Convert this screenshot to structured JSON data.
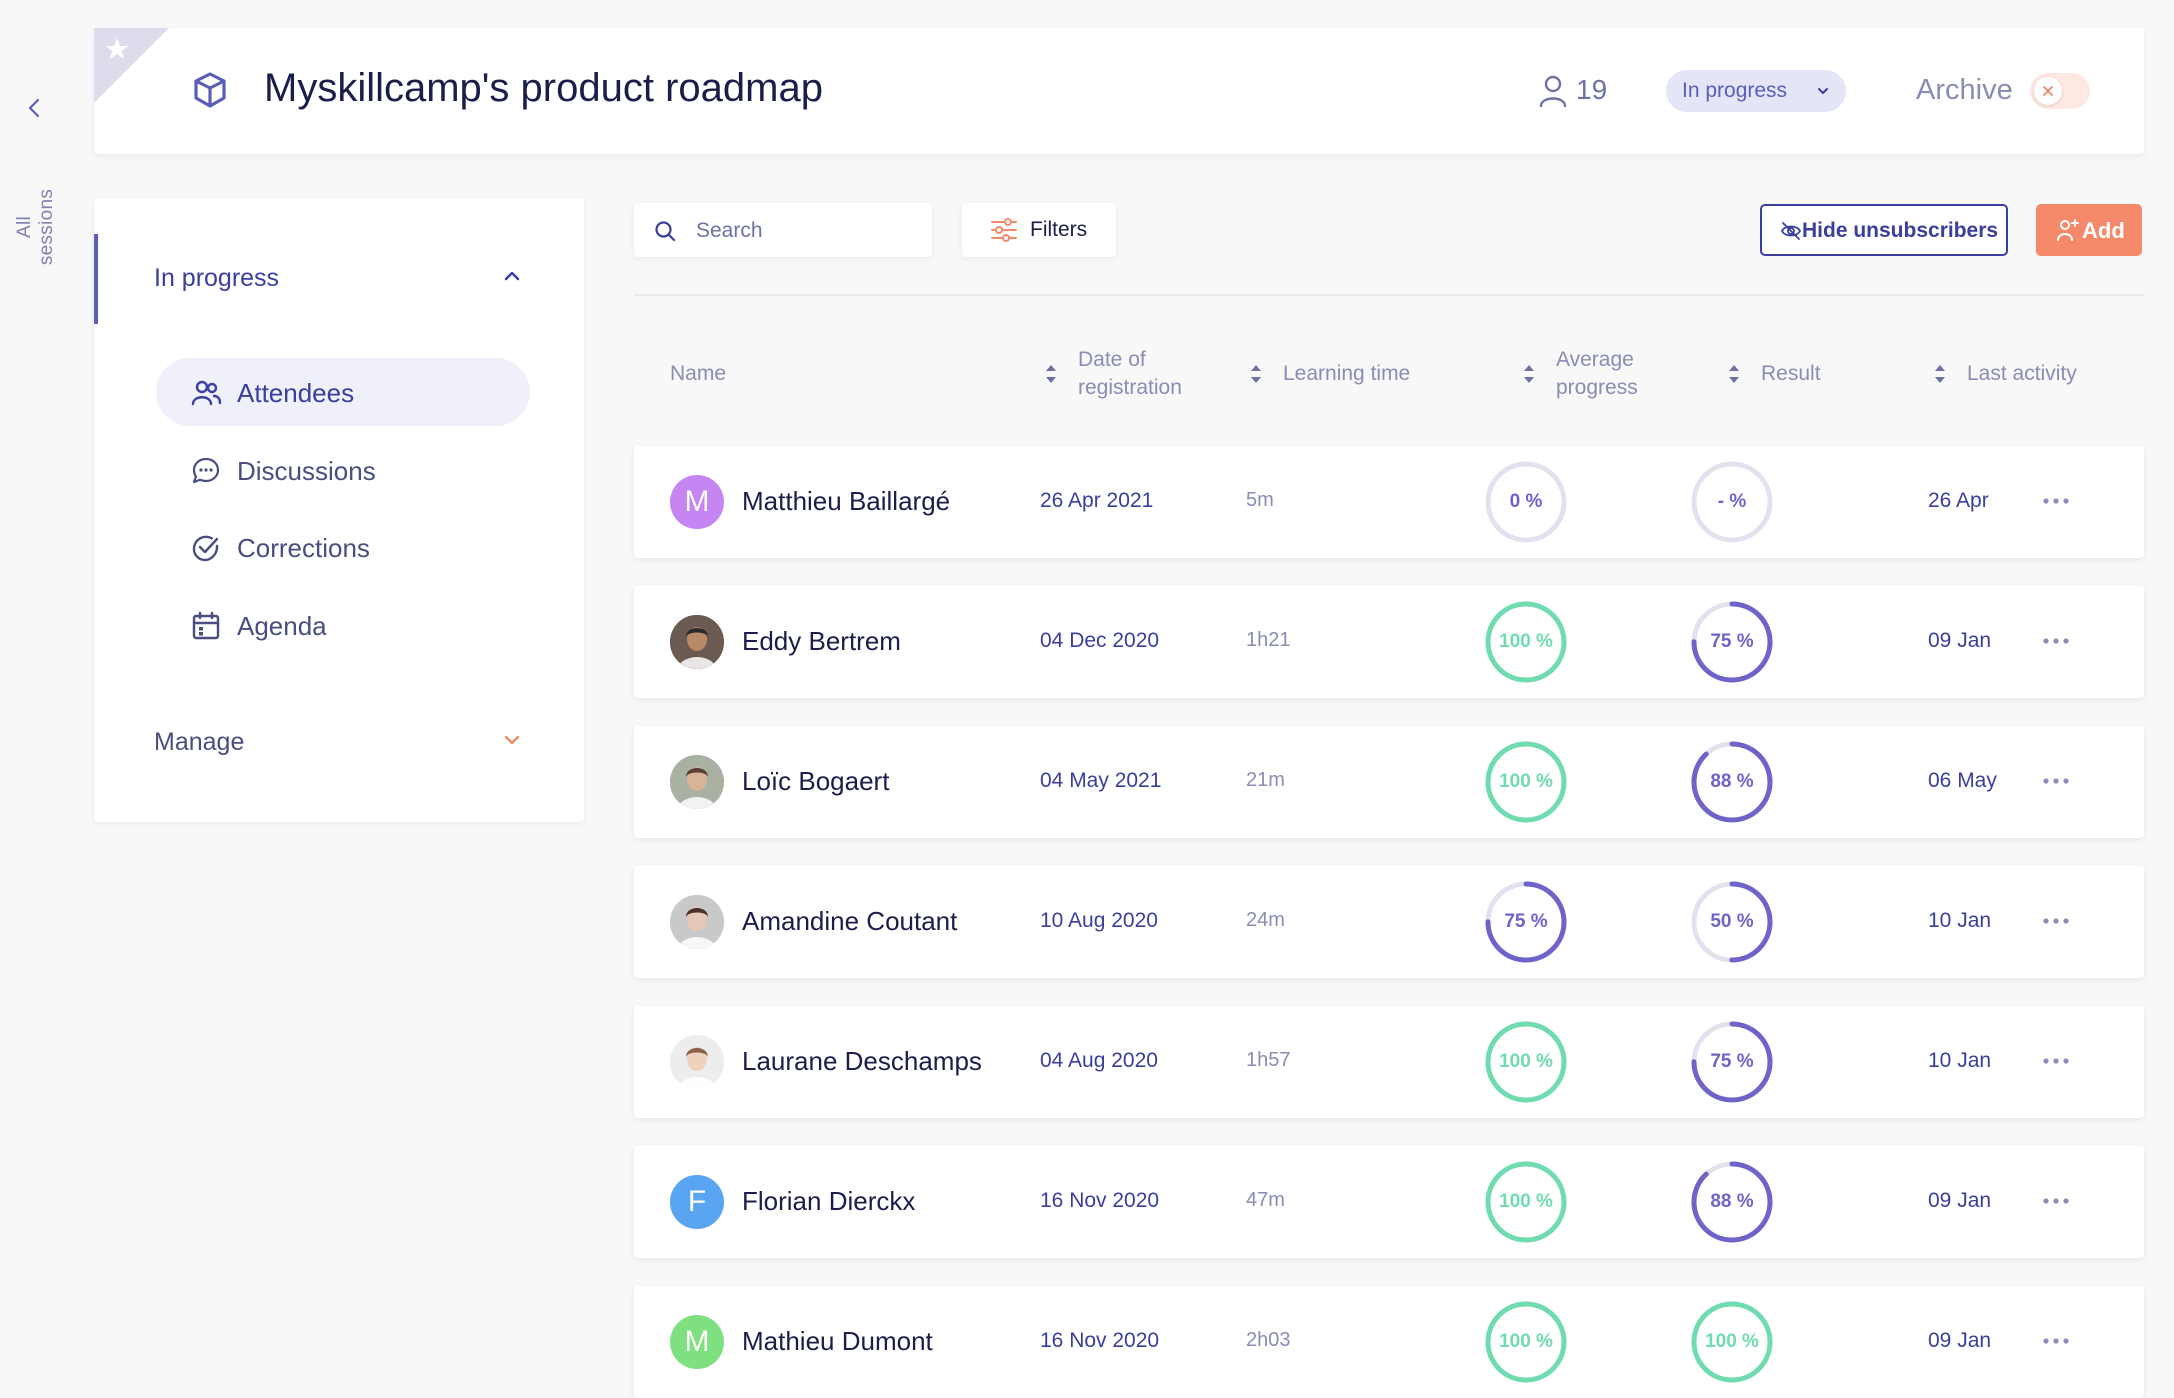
{
  "rail": {
    "back_label": "All sessions"
  },
  "header": {
    "title": "Myskillcamp's product roadmap",
    "attendee_count": "19",
    "status": "In progress",
    "archive_label": "Archive",
    "archive_enabled": false
  },
  "sidebar": {
    "section_label": "In progress",
    "items": [
      {
        "label": "Attendees",
        "icon": "attendees-icon",
        "active": true
      },
      {
        "label": "Discussions",
        "icon": "chat-bubble-icon",
        "active": false
      },
      {
        "label": "Corrections",
        "icon": "check-circle-icon",
        "active": false
      },
      {
        "label": "Agenda",
        "icon": "calendar-icon",
        "active": false
      }
    ],
    "manage_label": "Manage"
  },
  "toolbar": {
    "search_placeholder": "Search",
    "filters_label": "Filters",
    "hide_label": "Hide unsubscribers",
    "add_label": "Add"
  },
  "table": {
    "headers": {
      "name": "Name",
      "date_line1": "Date of",
      "date_line2": "registration",
      "learning": "Learning time",
      "avg_line1": "Average",
      "avg_line2": "progress",
      "result": "Result",
      "last": "Last activity"
    },
    "rows": [
      {
        "name": "Matthieu Baillargé",
        "date": "26 Apr 2021",
        "time": "5m",
        "progress": "0 %",
        "progress_value": 0,
        "result": "- %",
        "result_value": 0,
        "last": "26 Apr",
        "avatar": {
          "initial": "M",
          "color": "#c585f2"
        }
      },
      {
        "name": "Eddy Bertrem",
        "date": "04 Dec 2020",
        "time": "1h21",
        "progress": "100 %",
        "progress_value": 100,
        "result": "75 %",
        "result_value": 75,
        "last": "09 Jan",
        "avatar": {
          "photo": true,
          "skin": "#b98a66",
          "hair": "#2a2a2a",
          "bg": "#6a5a52"
        }
      },
      {
        "name": "Loïc Bogaert",
        "date": "04 May 2021",
        "time": "21m",
        "progress": "100 %",
        "progress_value": 100,
        "result": "88 %",
        "result_value": 88,
        "last": "06 May",
        "avatar": {
          "photo": true,
          "skin": "#d9b397",
          "hair": "#5a4032",
          "bg": "#a8b1a2"
        }
      },
      {
        "name": "Amandine Coutant",
        "date": "10 Aug 2020",
        "time": "24m",
        "progress": "75 %",
        "progress_value": 75,
        "result": "50 %",
        "result_value": 50,
        "last": "10 Jan",
        "avatar": {
          "photo": true,
          "skin": "#e6c9b5",
          "hair": "#4a3228",
          "bg": "#c9c9c9"
        }
      },
      {
        "name": "Laurane Deschamps",
        "date": "04 Aug 2020",
        "time": "1h57",
        "progress": "100 %",
        "progress_value": 100,
        "result": "75 %",
        "result_value": 75,
        "last": "10 Jan",
        "avatar": {
          "photo": true,
          "skin": "#efd2be",
          "hair": "#8a6248",
          "bg": "#ededed"
        }
      },
      {
        "name": "Florian Dierckx",
        "date": "16 Nov 2020",
        "time": "47m",
        "progress": "100 %",
        "progress_value": 100,
        "result": "88 %",
        "result_value": 88,
        "last": "09 Jan",
        "avatar": {
          "initial": "F",
          "color": "#5aa5f2"
        }
      },
      {
        "name": "Mathieu Dumont",
        "date": "16 Nov 2020",
        "time": "2h03",
        "progress": "100 %",
        "progress_value": 100,
        "result": "100 %",
        "result_value": 100,
        "last": "09 Jan",
        "avatar": {
          "initial": "M",
          "color": "#7fe07f"
        }
      }
    ]
  },
  "colors": {
    "primary": "#3a3e9c",
    "accent": "#f48a6a",
    "ring_complete": "#6fdcb0",
    "ring_partial": "#6e63c9",
    "ring_track": "#e2e2ef"
  }
}
